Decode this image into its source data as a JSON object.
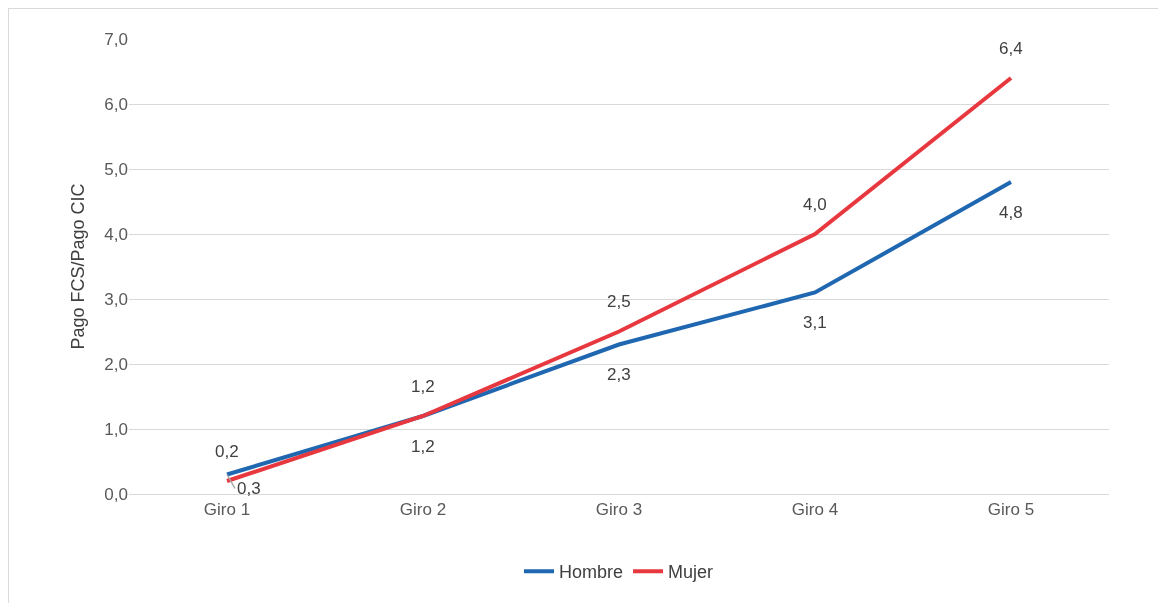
{
  "chart_data": {
    "type": "line",
    "ylabel": "Pago FCS/Pago CIC",
    "categories": [
      "Giro 1",
      "Giro 2",
      "Giro 3",
      "Giro 4",
      "Giro 5"
    ],
    "series": [
      {
        "name": "Hombre",
        "color": "#1f67b1",
        "values": [
          0.3,
          1.2,
          2.3,
          3.1,
          4.8
        ],
        "value_labels": [
          "0,3",
          "1,2",
          "2,3",
          "3,1",
          "4,8"
        ]
      },
      {
        "name": "Mujer",
        "color": "#e8383f",
        "values": [
          0.2,
          1.2,
          2.5,
          4.0,
          6.4
        ],
        "value_labels": [
          "0,2",
          "1,2",
          "2,5",
          "4,0",
          "6,4"
        ]
      }
    ],
    "ylim": [
      0,
      7
    ],
    "yticks": [
      {
        "value": 0,
        "label": "0,0"
      },
      {
        "value": 1,
        "label": "1,0"
      },
      {
        "value": 2,
        "label": "2,0"
      },
      {
        "value": 3,
        "label": "3,0"
      },
      {
        "value": 4,
        "label": "4,0"
      },
      {
        "value": 5,
        "label": "5,0"
      },
      {
        "value": 6,
        "label": "6,0"
      },
      {
        "value": 7,
        "label": "7,0"
      }
    ],
    "grid": "y",
    "legend": "bottom",
    "marker": "none",
    "line_style": "solid"
  }
}
